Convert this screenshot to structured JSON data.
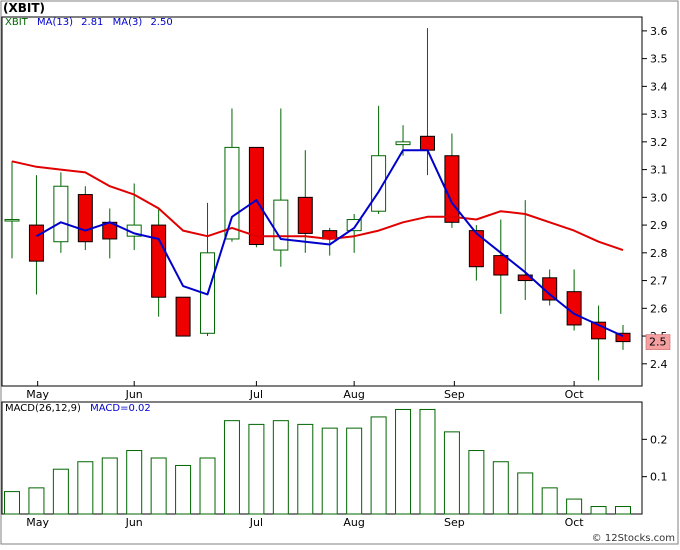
{
  "title": "(XBIT)",
  "watermark": "© 12Stocks.com",
  "colors": {
    "up_fill": "#ffffff",
    "down_fill": "#ee0000",
    "wick": "#006600",
    "ma13": "#e00000",
    "ma3": "#0000cc",
    "macd_bar": "#006600",
    "last_price_bg": "#f4a0a0",
    "grid": "#e8e8e8"
  },
  "price_panel": {
    "legend": {
      "symbol": "XBIT",
      "ma13_label": "MA(13)",
      "ma13_value": "2.81",
      "ma3_label": "MA(3)",
      "ma3_value": "2.50"
    },
    "last_price_label": "2.5"
  },
  "macd_panel": {
    "legend": {
      "label": "MACD(26,12,9)",
      "value_label": "MACD=0.02"
    }
  },
  "chart_data": [
    {
      "type": "candlestick",
      "title": "(XBIT)",
      "xlabel": "",
      "ylabel": "",
      "x_tick_labels": [
        "May",
        "Jun",
        "Jul",
        "Aug",
        "Sep",
        "Oct"
      ],
      "y_tick_labels": [
        "2.4",
        "2.5",
        "2.6",
        "2.7",
        "2.8",
        "2.9",
        "3.0",
        "3.1",
        "3.2",
        "3.3",
        "3.4",
        "3.5",
        "3.6"
      ],
      "ylim": [
        2.32,
        3.65
      ],
      "grid": false,
      "legend_position": "top-left",
      "candles": [
        {
          "open": 2.92,
          "high": 3.13,
          "low": 2.78,
          "close": 2.92
        },
        {
          "open": 2.9,
          "high": 3.08,
          "low": 2.65,
          "close": 2.77
        },
        {
          "open": 2.84,
          "high": 3.09,
          "low": 2.8,
          "close": 3.04
        },
        {
          "open": 3.01,
          "high": 3.04,
          "low": 2.81,
          "close": 2.84
        },
        {
          "open": 2.91,
          "high": 2.96,
          "low": 2.78,
          "close": 2.85
        },
        {
          "open": 2.86,
          "high": 3.05,
          "low": 2.81,
          "close": 2.9
        },
        {
          "open": 2.9,
          "high": 2.96,
          "low": 2.57,
          "close": 2.64
        },
        {
          "open": 2.64,
          "high": 2.64,
          "low": 2.5,
          "close": 2.5
        },
        {
          "open": 2.51,
          "high": 2.98,
          "low": 2.5,
          "close": 2.8
        },
        {
          "open": 2.85,
          "high": 3.32,
          "low": 2.84,
          "close": 3.18
        },
        {
          "open": 3.18,
          "high": 3.18,
          "low": 2.82,
          "close": 2.83
        },
        {
          "open": 2.81,
          "high": 3.32,
          "low": 2.75,
          "close": 2.99
        },
        {
          "open": 3.0,
          "high": 3.17,
          "low": 2.8,
          "close": 2.87
        },
        {
          "open": 2.88,
          "high": 2.89,
          "low": 2.79,
          "close": 2.85
        },
        {
          "open": 2.88,
          "high": 2.94,
          "low": 2.8,
          "close": 2.92
        },
        {
          "open": 2.95,
          "high": 3.33,
          "low": 2.94,
          "close": 3.15
        },
        {
          "open": 3.19,
          "high": 3.26,
          "low": 3.15,
          "close": 3.2
        },
        {
          "open": 3.22,
          "high": 3.61,
          "low": 3.08,
          "close": 3.17
        },
        {
          "open": 3.15,
          "high": 3.23,
          "low": 2.89,
          "close": 2.91
        },
        {
          "open": 2.88,
          "high": 2.9,
          "low": 2.7,
          "close": 2.75
        },
        {
          "open": 2.79,
          "high": 2.92,
          "low": 2.58,
          "close": 2.72
        },
        {
          "open": 2.72,
          "high": 2.99,
          "low": 2.63,
          "close": 2.7
        },
        {
          "open": 2.71,
          "high": 2.74,
          "low": 2.61,
          "close": 2.63
        },
        {
          "open": 2.66,
          "high": 2.74,
          "low": 2.52,
          "close": 2.54
        },
        {
          "open": 2.55,
          "high": 2.61,
          "low": 2.34,
          "close": 2.49
        },
        {
          "open": 2.51,
          "high": 2.54,
          "low": 2.45,
          "close": 2.48
        }
      ],
      "series": [
        {
          "name": "MA(13)",
          "values": [
            3.13,
            3.11,
            3.1,
            3.09,
            3.04,
            3.01,
            2.96,
            2.88,
            2.86,
            2.89,
            2.86,
            2.86,
            2.86,
            2.85,
            2.86,
            2.88,
            2.91,
            2.93,
            2.93,
            2.92,
            2.95,
            2.94,
            2.91,
            2.88,
            2.84,
            2.81
          ]
        },
        {
          "name": "MA(3)",
          "values": [
            null,
            2.86,
            2.91,
            2.88,
            2.91,
            2.87,
            2.85,
            2.68,
            2.65,
            2.93,
            2.99,
            2.85,
            2.84,
            2.83,
            2.89,
            3.02,
            3.17,
            3.17,
            2.98,
            2.87,
            2.8,
            2.73,
            2.65,
            2.58,
            2.54,
            2.5
          ]
        }
      ]
    },
    {
      "type": "bar",
      "title": "MACD(26,12,9)",
      "xlabel": "",
      "ylabel": "",
      "x_tick_labels": [
        "May",
        "Jun",
        "Jul",
        "Aug",
        "Sep",
        "Oct"
      ],
      "y_tick_labels": [
        "0.1",
        "0.2"
      ],
      "ylim": [
        0,
        0.3
      ],
      "grid": false,
      "series": [
        {
          "name": "MACD",
          "values": [
            0.06,
            0.07,
            0.12,
            0.14,
            0.15,
            0.17,
            0.15,
            0.13,
            0.15,
            0.25,
            0.24,
            0.25,
            0.24,
            0.23,
            0.23,
            0.26,
            0.28,
            0.28,
            0.22,
            0.17,
            0.14,
            0.11,
            0.07,
            0.04,
            0.02,
            0.02
          ]
        }
      ]
    }
  ]
}
